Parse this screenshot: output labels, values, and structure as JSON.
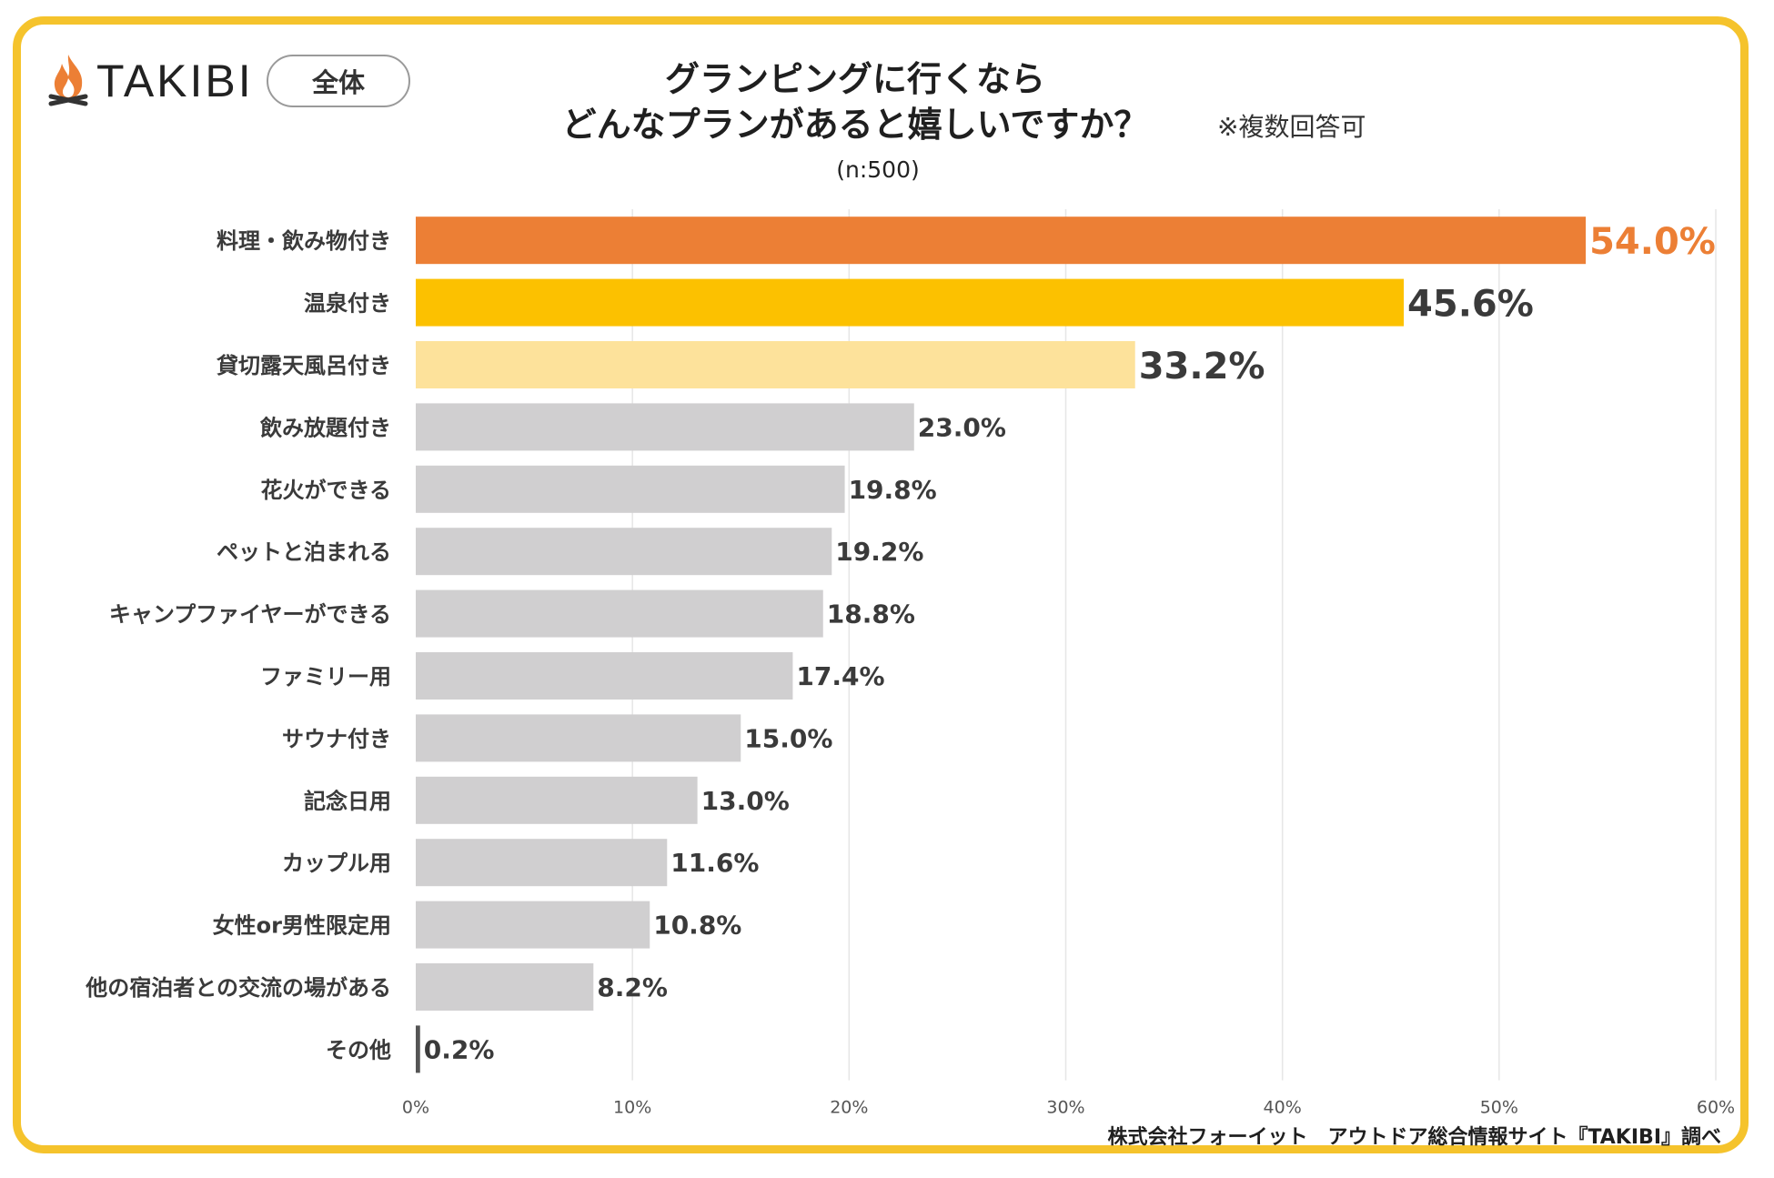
{
  "brand": {
    "logo_text": "TAKIBI",
    "scope": "全体"
  },
  "title": {
    "line1": "グランピングに行くなら",
    "line2": "どんなプランがあると嬉しいですか？",
    "note": "※複数回答可",
    "sample": "(n:500)"
  },
  "credit": "株式会社フォーイット　アウトドア総合情報サイト『TAKIBI』調べ",
  "colors": {
    "frame": "#f5c32c",
    "top1": "#ec7f35",
    "top2": "#fcc100",
    "top3": "#fde29b",
    "other": "#d0cfd0",
    "gridline": "#e6e6e6"
  },
  "chart_data": {
    "type": "bar",
    "orientation": "horizontal",
    "unit": "%",
    "xlim": [
      0,
      60
    ],
    "x_ticks": [
      "0%",
      "10%",
      "20%",
      "30%",
      "40%",
      "50%",
      "60%"
    ],
    "grid": true,
    "categories": [
      "料理・飲み物付き",
      "温泉付き",
      "貸切露天風呂付き",
      "飲み放題付き",
      "花火ができる",
      "ペットと泊まれる",
      "キャンプファイヤーができる",
      "ファミリー用",
      "サウナ付き",
      "記念日用",
      "カップル用",
      "女性or男性限定用",
      "他の宿泊者との交流の場がある",
      "その他"
    ],
    "values": [
      54.0,
      45.6,
      33.2,
      23.0,
      19.8,
      19.2,
      18.8,
      17.4,
      15.0,
      13.0,
      11.6,
      10.8,
      8.2,
      0.2
    ],
    "labels": [
      "54.0%",
      "45.6%",
      "33.2%",
      "23.0%",
      "19.8%",
      "19.2%",
      "18.8%",
      "17.4%",
      "15.0%",
      "13.0%",
      "11.6%",
      "10.8%",
      "8.2%",
      "0.2%"
    ]
  }
}
